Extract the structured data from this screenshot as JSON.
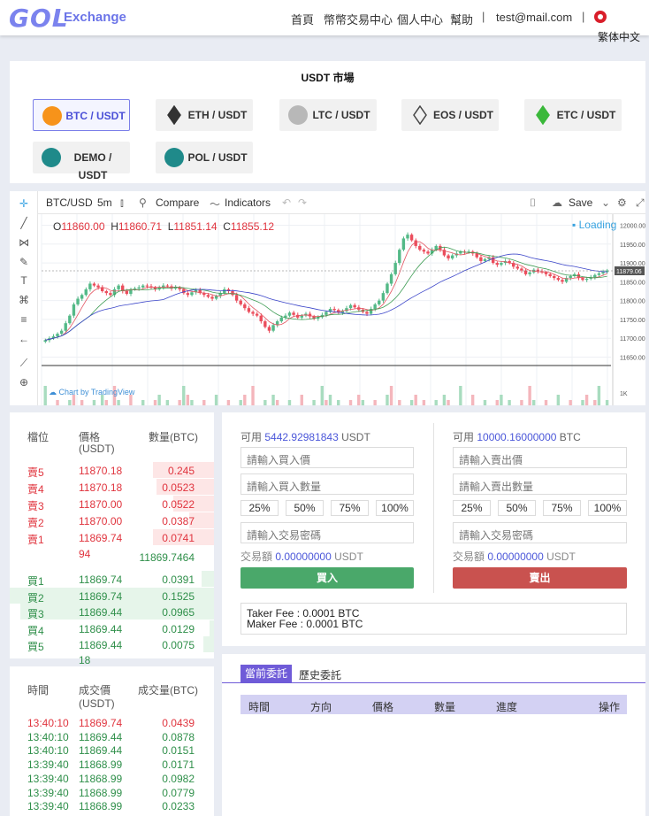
{
  "header": {
    "logo_main": "GOL",
    "logo_sub": "Exchange",
    "nav": [
      "首頁",
      "幣幣交易中心",
      "個人中心",
      "幫助"
    ],
    "separator": "|",
    "email": "test@mail.com",
    "language": "繁体中文"
  },
  "market": {
    "title": "USDT 市場",
    "coins": [
      {
        "label": "BTC / USDT",
        "icon": "bitcoin-icon",
        "color": "#f7931a",
        "active": true
      },
      {
        "label": "ETH / USDT",
        "icon": "ethereum-icon",
        "color": "#333333"
      },
      {
        "label": "LTC / USDT",
        "icon": "litecoin-icon",
        "color": "#b8b8b8"
      },
      {
        "label": "EOS / USDT",
        "icon": "eos-icon",
        "color": "#444444"
      },
      {
        "label": "ETC / USDT",
        "icon": "ethereum-classic-icon",
        "color": "#3ab83a"
      },
      {
        "label": "DEMO / USDT",
        "icon": "demo-coin-icon",
        "color": "#1f8a8a"
      },
      {
        "label": "POL / USDT",
        "icon": "pol-coin-icon",
        "color": "#1f8a8a"
      }
    ]
  },
  "chart": {
    "symbol": "BTC/USD",
    "interval": "5m",
    "compare": "Compare",
    "indicators": "Indicators",
    "save": "Save",
    "loading": "Loading",
    "attribution": "Chart by TradingView",
    "ohlc": {
      "o_label": "O",
      "o": "11860.00",
      "h_label": "H",
      "h": "11860.71",
      "l_label": "L",
      "l": "11851.14",
      "c_label": "C",
      "c": "11855.12"
    },
    "price_axis": [
      "12000.00",
      "11950.00",
      "11900.00",
      "11850.00",
      "11800.00",
      "11750.00",
      "11700.00",
      "11650.00"
    ],
    "last_price": "11879.06",
    "volume_axis": "1K"
  },
  "chart_data": {
    "type": "candlestick",
    "symbol": "BTC/USD",
    "interval": "5m",
    "ylim": [
      11630,
      12020
    ],
    "close": [
      11695,
      11700,
      11705,
      11712,
      11720,
      11740,
      11760,
      11790,
      11805,
      11815,
      11830,
      11845,
      11840,
      11835,
      11825,
      11820,
      11815,
      11830,
      11840,
      11825,
      11818,
      11830,
      11832,
      11835,
      11840,
      11838,
      11835,
      11830,
      11835,
      11840,
      11838,
      11832,
      11835,
      11830,
      11820,
      11815,
      11822,
      11828,
      11820,
      11815,
      11810,
      11805,
      11812,
      11820,
      11830,
      11825,
      11815,
      11800,
      11790,
      11780,
      11770,
      11765,
      11760,
      11745,
      11730,
      11720,
      11735,
      11745,
      11755,
      11760,
      11768,
      11762,
      11755,
      11760,
      11765,
      11758,
      11752,
      11756,
      11762,
      11770,
      11778,
      11775,
      11768,
      11772,
      11780,
      11788,
      11782,
      11776,
      11770,
      11765,
      11778,
      11790,
      11800,
      11820,
      11845,
      11870,
      11900,
      11935,
      11965,
      11975,
      11960,
      11945,
      11935,
      11930,
      11925,
      11935,
      11945,
      11935,
      11920,
      11912,
      11920,
      11925,
      11930,
      11928,
      11930,
      11925,
      11915,
      11905,
      11910,
      11915,
      11900,
      11895,
      11900,
      11905,
      11900,
      11890,
      11885,
      11880,
      11870,
      11875,
      11882,
      11878,
      11875,
      11870,
      11865,
      11860,
      11855,
      11850,
      11860,
      11865,
      11870,
      11860,
      11855,
      11858,
      11862,
      11868,
      11872,
      11876,
      11880
    ]
  },
  "orderbook": {
    "headers": {
      "pos": "檔位",
      "price": "價格",
      "price_unit": "(USDT)",
      "qty": "數量(BTC)"
    },
    "asks": [
      {
        "pos": "賣5",
        "price": "11870.18",
        "qty": "0.245",
        "depth": 0.3
      },
      {
        "pos": "賣4",
        "price": "11870.18",
        "qty": "0.0523",
        "depth": 0.28
      },
      {
        "pos": "賣3",
        "price": "11870.00",
        "qty": "0.0522",
        "depth": 0.2
      },
      {
        "pos": "賣2",
        "price": "11870.00",
        "qty": "0.0387",
        "depth": 0.12
      },
      {
        "pos": "賣1",
        "price": "11869.74",
        "price_cont": "94",
        "qty": "0.0741",
        "depth": 0.3
      }
    ],
    "mid_price": "11869.7464",
    "bids": [
      {
        "pos": "買1",
        "price": "11869.74",
        "qty": "0.0391",
        "depth": 0.06
      },
      {
        "pos": "買2",
        "price": "11869.74",
        "qty": "0.1525",
        "depth": 1.0
      },
      {
        "pos": "買3",
        "price": "11869.44",
        "qty": "0.0965",
        "depth": 0.95
      },
      {
        "pos": "買4",
        "price": "11869.44",
        "qty": "0.0129",
        "depth": 0.02
      },
      {
        "pos": "買5",
        "price": "11869.44",
        "price_cont": "18",
        "qty": "0.0075",
        "depth": 0.05
      }
    ]
  },
  "trades": {
    "headers": {
      "time": "時間",
      "price": "成交價",
      "price_unit": "(USDT)",
      "qty": "成交量(BTC)"
    },
    "rows": [
      {
        "time": "13:40:10",
        "price": "11869.74",
        "qty": "0.0439",
        "side": "sell"
      },
      {
        "time": "13:40:10",
        "price": "11869.44",
        "qty": "0.0878",
        "side": "buy"
      },
      {
        "time": "13:40:10",
        "price": "11869.44",
        "qty": "0.0151",
        "side": "buy"
      },
      {
        "time": "13:39:40",
        "price": "11868.99",
        "qty": "0.0171",
        "side": "buy"
      },
      {
        "time": "13:39:40",
        "price": "11868.99",
        "qty": "0.0982",
        "side": "buy"
      },
      {
        "time": "13:39:40",
        "price": "11868.99",
        "qty": "0.0779",
        "side": "buy"
      },
      {
        "time": "13:39:40",
        "price": "11868.99",
        "qty": "0.0233",
        "side": "buy"
      }
    ]
  },
  "trade_form": {
    "buy": {
      "avail_label": "可用",
      "avail_value": "5442.92981843",
      "avail_unit": "USDT",
      "price_placeholder": "請輸入買入價",
      "qty_placeholder": "請輸入買入數量",
      "pw_placeholder": "請輸入交易密碼",
      "amount_label": "交易額",
      "amount_value": "0.00000000",
      "amount_unit": "USDT",
      "button": "買入"
    },
    "sell": {
      "avail_label": "可用",
      "avail_value": "10000.16000000",
      "avail_unit": "BTC",
      "price_placeholder": "請輸入賣出價",
      "qty_placeholder": "請輸入賣出數量",
      "pw_placeholder": "請輸入交易密碼",
      "amount_label": "交易額",
      "amount_value": "0.00000000",
      "amount_unit": "USDT",
      "button": "賣出"
    },
    "percentages": [
      "25%",
      "50%",
      "75%",
      "100%"
    ],
    "fees": {
      "taker": "Taker Fee : 0.0001 BTC",
      "maker": "Maker Fee : 0.0001 BTC"
    }
  },
  "orders": {
    "tabs": [
      "當前委託",
      "歷史委託"
    ],
    "columns": [
      "時間",
      "方向",
      "價格",
      "數量",
      "進度",
      "操作"
    ]
  },
  "colors": {
    "accent": "#6f5bd8",
    "buy": "#4aa86a",
    "sell": "#c9524f"
  }
}
